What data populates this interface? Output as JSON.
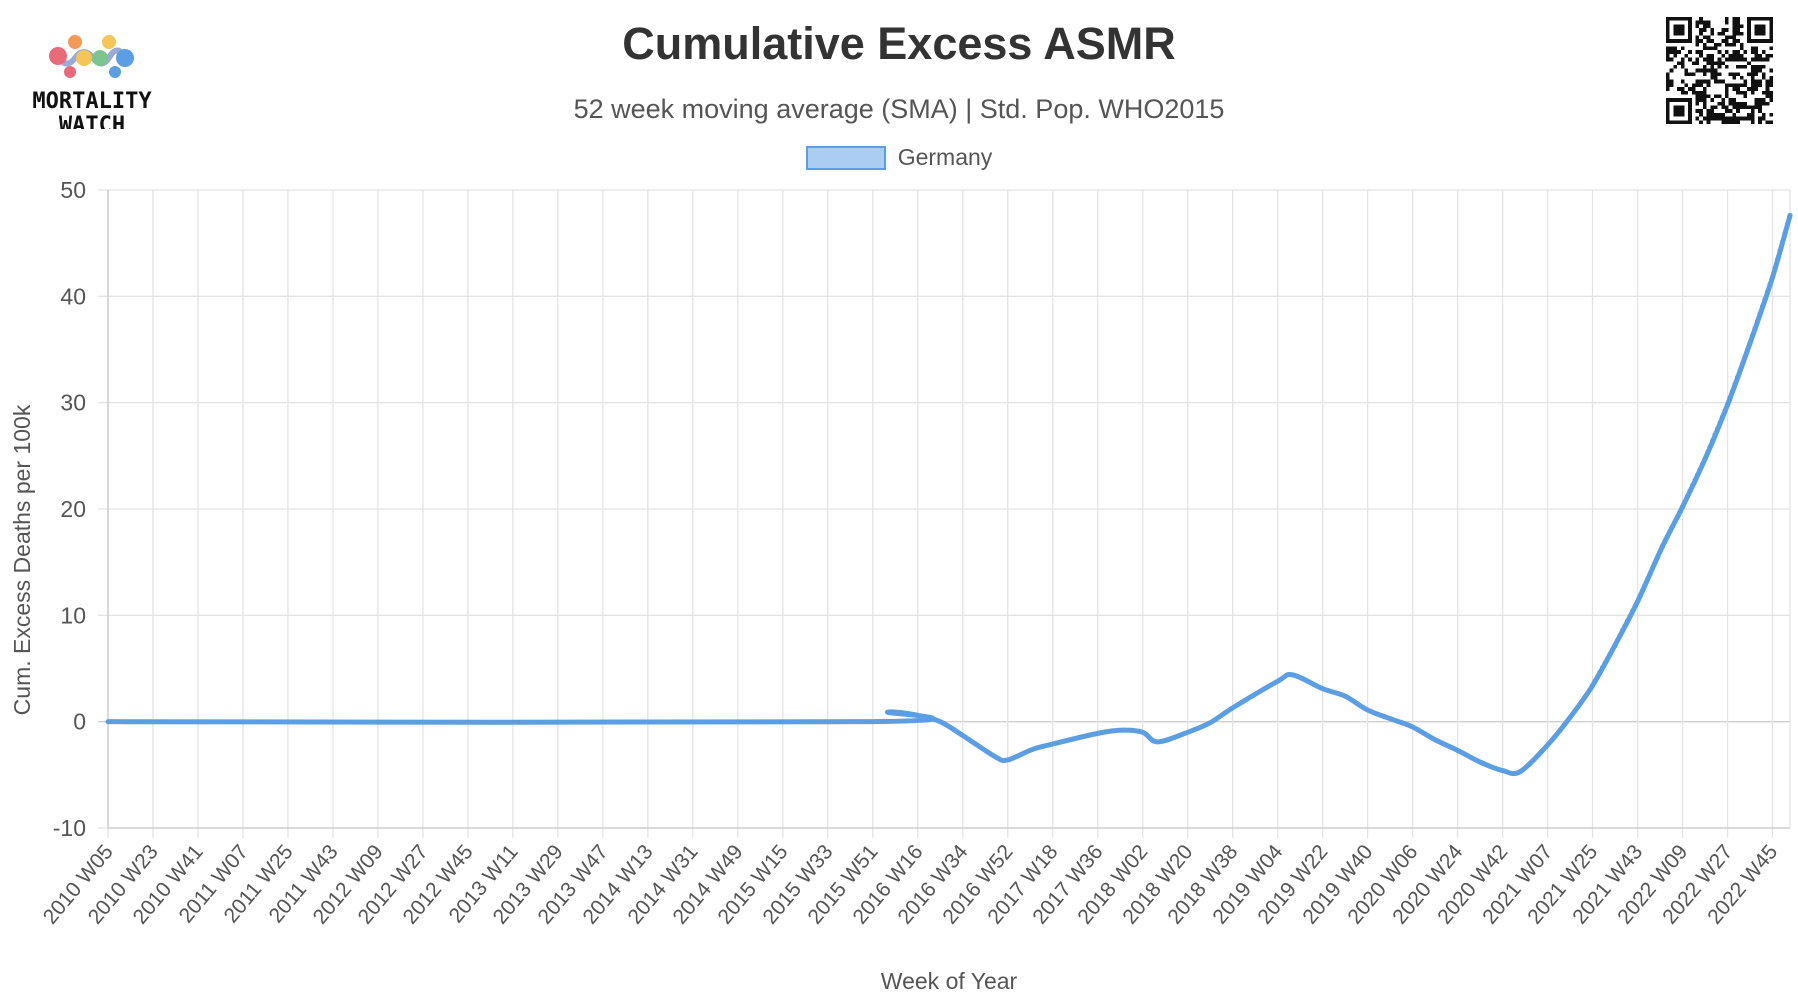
{
  "header": {
    "title": "Cumulative Excess ASMR",
    "subtitle": "52 week moving average (SMA) | Std. Pop. WHO2015"
  },
  "logo": {
    "line1": "MORTALITY",
    "line2": "WATCH",
    "icon": "mortality-watch-logo-icon"
  },
  "qr": {
    "icon": "qr-code-icon"
  },
  "legend": {
    "label": "Germany"
  },
  "colors": {
    "series": "#5b9ee3",
    "legend_fill": "#abcdf2",
    "grid": "#e0e0e0"
  },
  "chart_data": {
    "type": "line",
    "title": "Cumulative Excess ASMR",
    "subtitle": "52 week moving average (SMA) | Std. Pop. WHO2015",
    "xlabel": "Week of Year",
    "ylabel": "Cum. Excess Deaths per 100k",
    "ylim": [
      -10,
      50
    ],
    "yticks": [
      -10,
      0,
      10,
      20,
      30,
      40,
      50
    ],
    "grid": true,
    "legend_position": "top-center",
    "x_tick_labels": [
      "2010 W05",
      "2010 W23",
      "2010 W41",
      "2011 W07",
      "2011 W25",
      "2011 W43",
      "2012 W09",
      "2012 W27",
      "2012 W45",
      "2013 W11",
      "2013 W29",
      "2013 W47",
      "2014 W13",
      "2014 W31",
      "2014 W49",
      "2015 W15",
      "2015 W33",
      "2015 W51",
      "2016 W16",
      "2016 W34",
      "2016 W52",
      "2017 W18",
      "2017 W36",
      "2018 W02",
      "2018 W20",
      "2018 W38",
      "2019 W04",
      "2019 W22",
      "2019 W40",
      "2020 W06",
      "2020 W24",
      "2020 W42",
      "2021 W07",
      "2021 W25",
      "2021 W43",
      "2022 W09",
      "2022 W27",
      "2022 W45"
    ],
    "series": [
      {
        "name": "Germany",
        "points": [
          [
            "2010 W05",
            0
          ],
          [
            "2015 W51",
            0
          ],
          [
            "2016 W04",
            0.9
          ],
          [
            "2016 W16",
            0.6
          ],
          [
            "2016 W25",
            0
          ],
          [
            "2016 W34",
            -1.3
          ],
          [
            "2016 W47",
            -3.3
          ],
          [
            "2016 W52",
            -3.6
          ],
          [
            "2017 W10",
            -2.6
          ],
          [
            "2017 W18",
            -2.1
          ],
          [
            "2017 W36",
            -1.1
          ],
          [
            "2017 W46",
            -0.8
          ],
          [
            "2018 W02",
            -1.0
          ],
          [
            "2018 W08",
            -1.9
          ],
          [
            "2018 W20",
            -1.0
          ],
          [
            "2018 W29",
            -0.1
          ],
          [
            "2018 W38",
            1.3
          ],
          [
            "2019 W04",
            3.8
          ],
          [
            "2019 W10",
            4.4
          ],
          [
            "2019 W22",
            3.1
          ],
          [
            "2019 W31",
            2.4
          ],
          [
            "2019 W40",
            1.1
          ],
          [
            "2019 W50",
            0.2
          ],
          [
            "2020 W06",
            -0.5
          ],
          [
            "2020 W15",
            -1.7
          ],
          [
            "2020 W24",
            -2.7
          ],
          [
            "2020 W33",
            -3.8
          ],
          [
            "2020 W42",
            -4.6
          ],
          [
            "2020 W49",
            -4.7
          ],
          [
            "2021 W07",
            -2.2
          ],
          [
            "2021 W16",
            0.4
          ],
          [
            "2021 W25",
            3.4
          ],
          [
            "2021 W34",
            7.2
          ],
          [
            "2021 W43",
            11.3
          ],
          [
            "2022 W01",
            16.5
          ],
          [
            "2022 W09",
            20.2
          ],
          [
            "2022 W18",
            24.7
          ],
          [
            "2022 W27",
            29.8
          ],
          [
            "2022 W36",
            35.6
          ],
          [
            "2022 W45",
            41.8
          ],
          [
            "2022 W52",
            47.6
          ]
        ]
      }
    ]
  }
}
